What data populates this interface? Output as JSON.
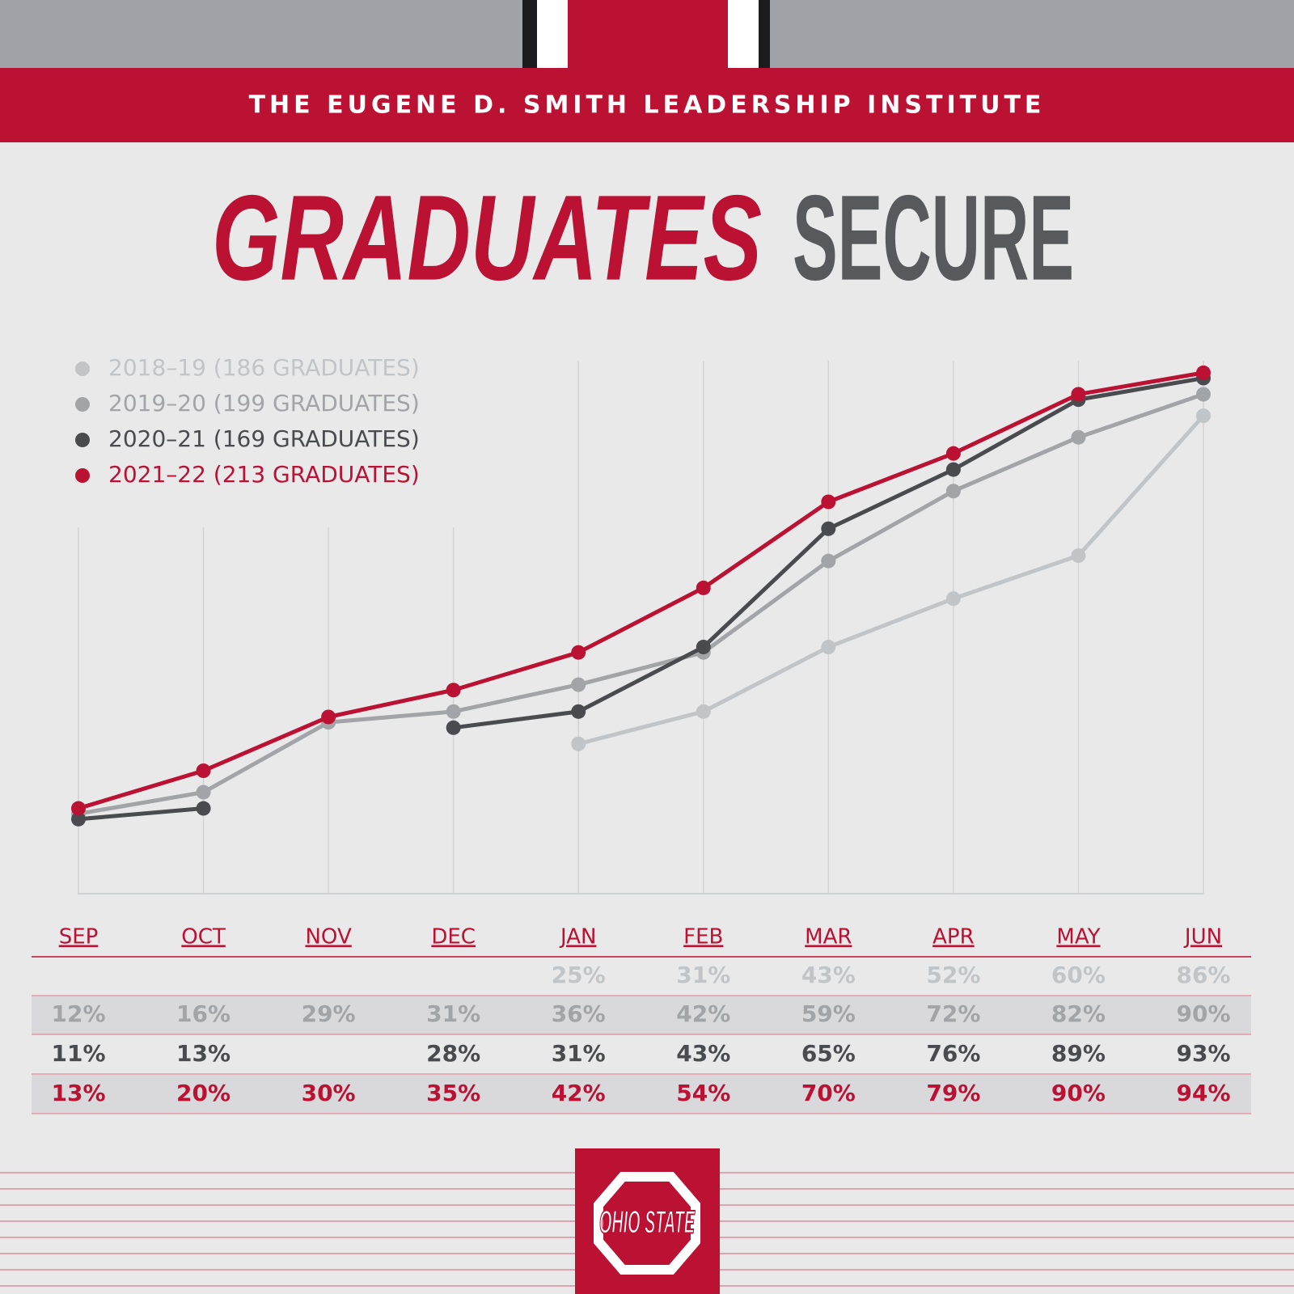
{
  "header": "THE EUGENE D. SMITH LEADERSHIP INSTITUTE",
  "logo_text": "OHIO STATE",
  "chart_data": {
    "type": "line",
    "title": [
      "GRADUATES",
      "SECURE"
    ],
    "categories": [
      "SEP",
      "OCT",
      "NOV",
      "DEC",
      "JAN",
      "FEB",
      "MAR",
      "APR",
      "MAY",
      "JUN"
    ],
    "ylim": [
      0,
      100
    ],
    "series": [
      {
        "name": "2018–19 (186 GRADUATES)",
        "color": "#c2c5c8",
        "values": [
          null,
          null,
          null,
          null,
          25,
          31,
          43,
          52,
          60,
          86
        ],
        "value_labels": [
          null,
          null,
          null,
          null,
          "25%",
          "31%",
          "43%",
          "52%",
          "60%",
          "86%"
        ]
      },
      {
        "name": "2019–20 (199 GRADUATES)",
        "color": "#a2a4a7",
        "values": [
          12,
          16,
          29,
          31,
          36,
          42,
          59,
          72,
          82,
          90
        ],
        "value_labels": [
          "12%",
          "16%",
          "29%",
          "31%",
          "36%",
          "42%",
          "59%",
          "72%",
          "82%",
          "90%"
        ]
      },
      {
        "name": "2020–21 (169 GRADUATES)",
        "color": "#4a4b4f",
        "values": [
          11,
          13,
          null,
          28,
          31,
          43,
          65,
          76,
          89,
          93
        ],
        "value_labels": [
          "11%",
          "13%",
          null,
          "28%",
          "31%",
          "43%",
          "65%",
          "76%",
          "89%",
          "93%"
        ]
      },
      {
        "name": "2021–22 (213 GRADUATES)",
        "color": "#bb1133",
        "values": [
          13,
          20,
          30,
          35,
          42,
          54,
          70,
          79,
          90,
          94
        ],
        "value_labels": [
          "13%",
          "20%",
          "30%",
          "35%",
          "42%",
          "54%",
          "70%",
          "79%",
          "90%",
          "94%"
        ]
      }
    ]
  }
}
